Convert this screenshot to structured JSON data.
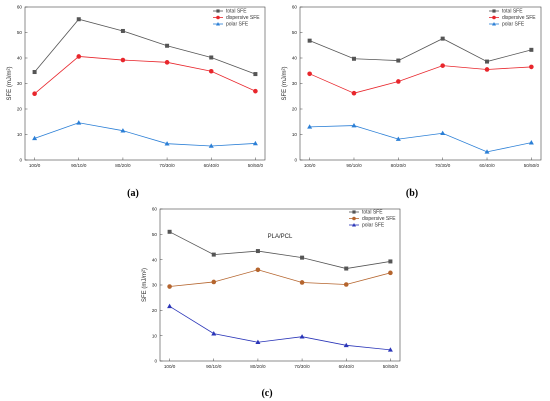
{
  "chart_data": [
    {
      "panel": "(a)",
      "type": "line",
      "categories": [
        "100/0",
        "90/10/0",
        "80/20/0",
        "70/30/0",
        "60/40/0",
        "50/50/0"
      ],
      "ylabel": "SFE (mJ/m²)",
      "xlabel": "",
      "ylim": [
        0,
        60
      ],
      "yticks": [
        0,
        10,
        20,
        30,
        40,
        50,
        60
      ],
      "legend_position": "top-right",
      "grid": false,
      "series": [
        {
          "name": "total SFE",
          "values": [
            34.5,
            55.2,
            50.6,
            44.8,
            40.2,
            33.7
          ],
          "color": "#555555",
          "marker": "square"
        },
        {
          "name": "dispersive SFE",
          "values": [
            26.0,
            40.6,
            39.2,
            38.3,
            34.8,
            27.0
          ],
          "color": "#e8262c",
          "marker": "circle"
        },
        {
          "name": "polar SFE",
          "values": [
            8.5,
            14.6,
            11.5,
            6.4,
            5.5,
            6.5
          ],
          "color": "#2b7fd6",
          "marker": "triangle"
        }
      ]
    },
    {
      "panel": "(b)",
      "type": "line",
      "categories": [
        "100/0",
        "90/10/0",
        "80/20/0",
        "70/30/0",
        "60/40/0",
        "50/50/0"
      ],
      "ylabel": "SFE (mJ/m²)",
      "xlabel": "",
      "ylim": [
        0,
        60
      ],
      "yticks": [
        0,
        10,
        20,
        30,
        40,
        50,
        60
      ],
      "legend_position": "top-right",
      "grid": false,
      "series": [
        {
          "name": "total SFE",
          "values": [
            46.8,
            39.7,
            39.0,
            47.6,
            38.6,
            43.2
          ],
          "color": "#555555",
          "marker": "square"
        },
        {
          "name": "dispersive SFE",
          "values": [
            33.8,
            26.2,
            30.8,
            37.0,
            35.5,
            36.5
          ],
          "color": "#e8262c",
          "marker": "circle"
        },
        {
          "name": "polar SFE",
          "values": [
            13.0,
            13.5,
            8.2,
            10.5,
            3.2,
            6.8
          ],
          "color": "#2b7fd6",
          "marker": "triangle"
        }
      ]
    },
    {
      "panel": "(c)",
      "type": "line",
      "categories": [
        "100/0",
        "90/10/0",
        "80/20/0",
        "70/30/0",
        "60/40/0",
        "50/50/0"
      ],
      "title": "PLA/PCL",
      "ylabel": "SFE (mJ/m²)",
      "xlabel": "",
      "ylim": [
        0,
        60
      ],
      "yticks": [
        0,
        10,
        20,
        30,
        40,
        50,
        60
      ],
      "legend_position": "top-right",
      "grid": false,
      "series": [
        {
          "name": "total SFE",
          "values": [
            51.0,
            42.0,
            43.4,
            40.8,
            36.5,
            39.3
          ],
          "color": "#555555",
          "marker": "square"
        },
        {
          "name": "dispersive SFE",
          "values": [
            29.4,
            31.2,
            36.0,
            31.0,
            30.2,
            34.8
          ],
          "color": "#b5652e",
          "marker": "circle"
        },
        {
          "name": "polar SFE",
          "values": [
            21.6,
            10.8,
            7.4,
            9.6,
            6.2,
            4.4
          ],
          "color": "#2a35b8",
          "marker": "triangle"
        }
      ]
    }
  ]
}
